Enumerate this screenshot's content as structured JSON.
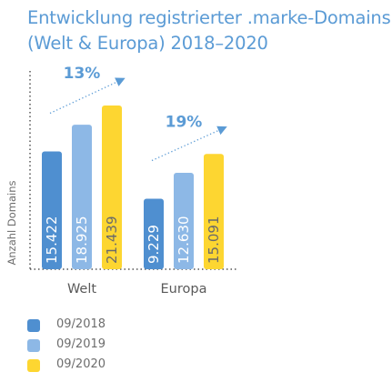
{
  "title": {
    "line1": "Entwicklung registrierter .marke-Domains",
    "line2": "(Welt & Europa) 2018–2020"
  },
  "colors": {
    "title": "#5b9bd5",
    "series": [
      "#4f8fd0",
      "#8db8e6",
      "#fdd631"
    ],
    "annotation": "#5b9bd5",
    "axis_text": "#6d6d6d"
  },
  "chart_data": {
    "type": "bar",
    "title": "Entwicklung registrierter .marke-Domains (Welt & Europa) 2018–2020",
    "categories": [
      "Welt",
      "Europa"
    ],
    "ylabel": "Anzahl Domains",
    "xlabel": "",
    "ylim": [
      0,
      23000
    ],
    "grid": false,
    "legend_position": "bottom-left",
    "series": [
      {
        "name": "09/2018",
        "values": [
          15422,
          9229
        ],
        "labels": [
          "15.422",
          "9.229"
        ]
      },
      {
        "name": "09/2019",
        "values": [
          18925,
          12630
        ],
        "labels": [
          "18.925",
          "12.630"
        ]
      },
      {
        "name": "09/2020",
        "values": [
          21439,
          15091
        ],
        "labels": [
          "21.439",
          "15.091"
        ]
      }
    ],
    "annotations": [
      {
        "category": "Welt",
        "text": "13%"
      },
      {
        "category": "Europa",
        "text": "19%"
      }
    ]
  }
}
